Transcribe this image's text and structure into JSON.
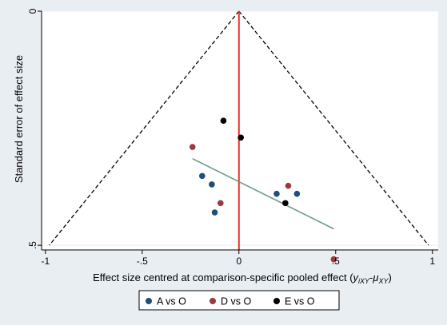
{
  "chart_data": {
    "type": "scatter",
    "title": "",
    "xlabel": "Effect size centred at comparison-specific pooled effect (",
    "xlabel_formula": {
      "y": "y",
      "y_sub": "iXY",
      "minus": "-",
      "mu": "μ",
      "mu_sub": "XY",
      "close": ")"
    },
    "ylabel": "Standard error of effect size",
    "xlim": [
      -1.02,
      1.03
    ],
    "ylim": [
      0,
      0.51
    ],
    "y_inverted": true,
    "x_ticks": [
      {
        "value": -1,
        "label": "-1"
      },
      {
        "value": -0.5,
        "label": "-.5"
      },
      {
        "value": 0,
        "label": "0"
      },
      {
        "value": 0.5,
        "label": ".5"
      },
      {
        "value": 1,
        "label": "1"
      }
    ],
    "y_ticks": [
      {
        "value": 0,
        "label": "0"
      },
      {
        "value": 0.5,
        "label": ".5"
      }
    ],
    "grid": "horizontal",
    "pooled_line_x": 0,
    "funnel": {
      "apex": [
        0,
        0
      ],
      "base_left": [
        -0.98,
        0.5
      ],
      "base_right": [
        0.98,
        0.5
      ]
    },
    "fit_line": {
      "x1": -0.24,
      "y1": 0.315,
      "x2": 0.49,
      "y2": 0.465
    },
    "legend_position": "bottom",
    "colors": {
      "A vs O": "#1f4e79",
      "D vs O": "#9b3a3f",
      "E vs O": "#000000",
      "pooled": "#e8352c",
      "funnel": "#000000",
      "fit": "#6a9a8c",
      "plot_bg": "#ffffff",
      "outer_bg": "#e9eef3"
    },
    "series": [
      {
        "name": "A vs O",
        "points": [
          {
            "x": -0.19,
            "y": 0.352
          },
          {
            "x": -0.14,
            "y": 0.37
          },
          {
            "x": -0.125,
            "y": 0.43
          },
          {
            "x": 0.195,
            "y": 0.39
          },
          {
            "x": 0.3,
            "y": 0.39
          }
        ]
      },
      {
        "name": "D vs O",
        "points": [
          {
            "x": -0.24,
            "y": 0.29
          },
          {
            "x": -0.095,
            "y": 0.41
          },
          {
            "x": 0.255,
            "y": 0.373
          },
          {
            "x": 0.49,
            "y": 0.53
          }
        ]
      },
      {
        "name": "E vs O",
        "points": [
          {
            "x": -0.08,
            "y": 0.234
          },
          {
            "x": 0.01,
            "y": 0.27
          },
          {
            "x": 0.24,
            "y": 0.41
          }
        ]
      }
    ]
  }
}
